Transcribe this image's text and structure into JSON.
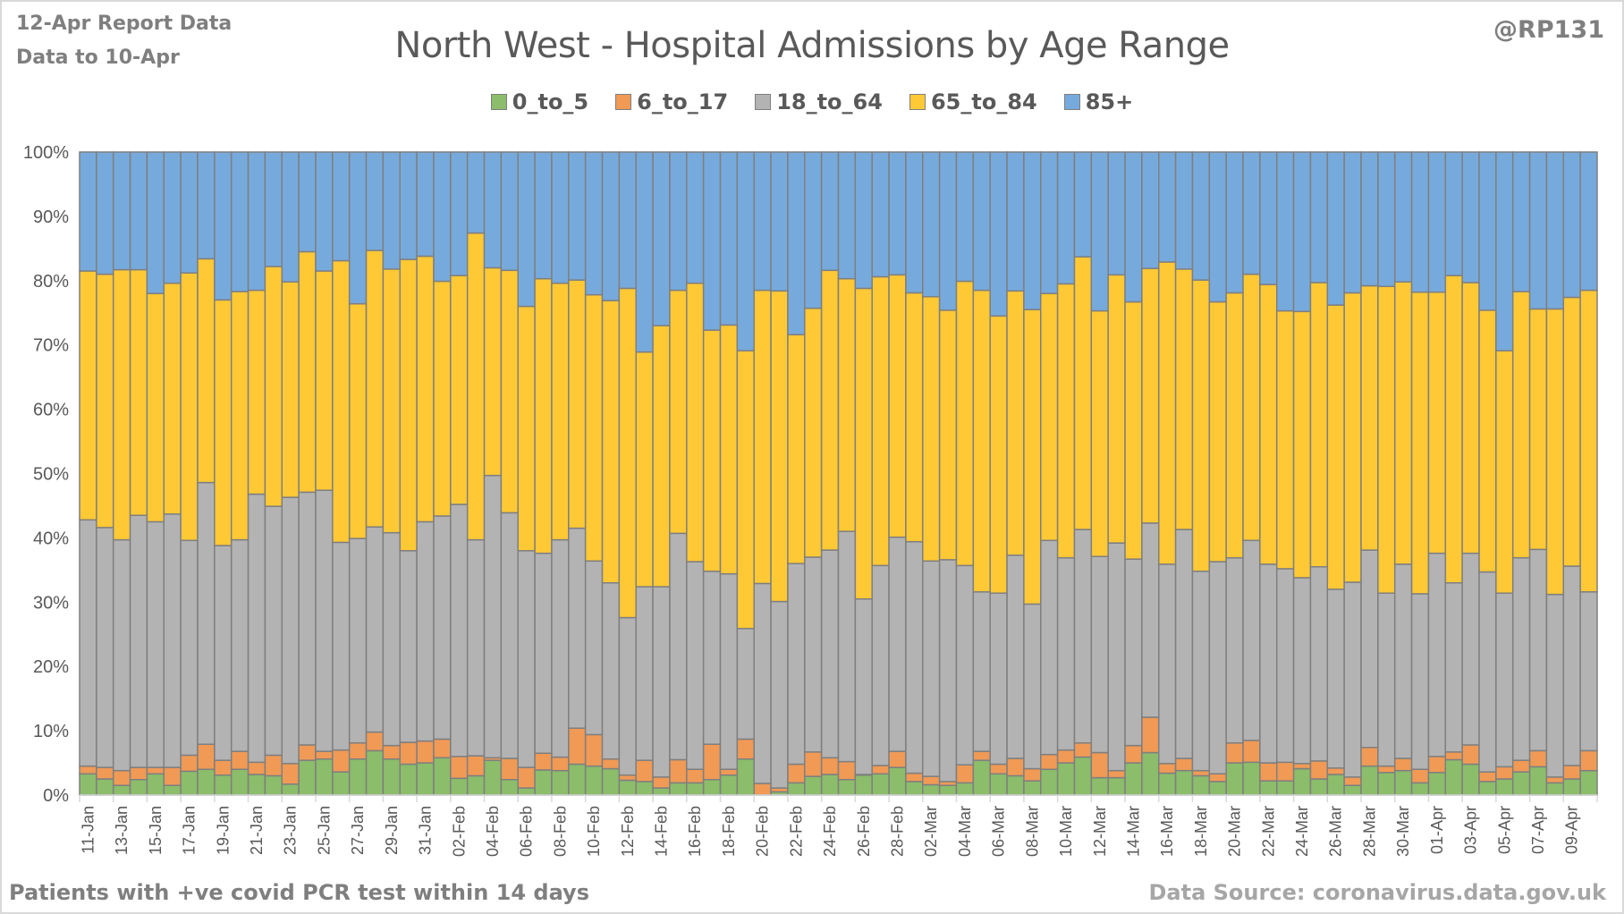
{
  "header": {
    "report_date": "12-Apr Report Data",
    "data_to": "Data to 10-Apr",
    "handle": "@RP131"
  },
  "footer": {
    "note": "Patients with  +ve covid PCR test within 14 days",
    "source": "Data Source: coronavirus.data.gov.uk"
  },
  "chart_data": {
    "type": "bar",
    "stacked": "100%",
    "title": "North West - Hospital Admissions by Age Range",
    "xlabel": "",
    "ylabel": "",
    "ylim": [
      0,
      100
    ],
    "yticks": [
      "0%",
      "10%",
      "20%",
      "30%",
      "40%",
      "50%",
      "60%",
      "70%",
      "80%",
      "90%",
      "100%"
    ],
    "grid": true,
    "legend_position": "top",
    "categories": [
      "11-Jan",
      "12-Jan",
      "13-Jan",
      "14-Jan",
      "15-Jan",
      "16-Jan",
      "17-Jan",
      "18-Jan",
      "19-Jan",
      "20-Jan",
      "21-Jan",
      "22-Jan",
      "23-Jan",
      "24-Jan",
      "25-Jan",
      "26-Jan",
      "27-Jan",
      "28-Jan",
      "29-Jan",
      "30-Jan",
      "31-Jan",
      "01-Feb",
      "02-Feb",
      "03-Feb",
      "04-Feb",
      "05-Feb",
      "06-Feb",
      "07-Feb",
      "08-Feb",
      "09-Feb",
      "10-Feb",
      "11-Feb",
      "12-Feb",
      "13-Feb",
      "14-Feb",
      "15-Feb",
      "16-Feb",
      "17-Feb",
      "18-Feb",
      "19-Feb",
      "20-Feb",
      "21-Feb",
      "22-Feb",
      "23-Feb",
      "24-Feb",
      "25-Feb",
      "26-Feb",
      "27-Feb",
      "28-Feb",
      "01-Mar",
      "02-Mar",
      "03-Mar",
      "04-Mar",
      "05-Mar",
      "06-Mar",
      "07-Mar",
      "08-Mar",
      "09-Mar",
      "10-Mar",
      "11-Mar",
      "12-Mar",
      "13-Mar",
      "14-Mar",
      "15-Mar",
      "16-Mar",
      "17-Mar",
      "18-Mar",
      "19-Mar",
      "20-Mar",
      "21-Mar",
      "22-Mar",
      "23-Mar",
      "24-Mar",
      "25-Mar",
      "26-Mar",
      "27-Mar",
      "28-Mar",
      "29-Mar",
      "30-Mar",
      "31-Mar",
      "01-Apr",
      "02-Apr",
      "03-Apr",
      "04-Apr",
      "05-Apr",
      "06-Apr",
      "07-Apr",
      "08-Apr",
      "09-Apr",
      "10-Apr"
    ],
    "cumulative_top_percent": {
      "0_to_5": [
        3.3,
        2.5,
        1.5,
        2.4,
        3.3,
        1.5,
        3.7,
        4.0,
        3.1,
        4.0,
        3.2,
        3.0,
        1.7,
        5.4,
        5.6,
        3.6,
        5.6,
        6.9,
        5.6,
        4.8,
        5.0,
        5.8,
        2.6,
        3.0,
        5.4,
        2.4,
        1.1,
        3.9,
        3.8,
        4.8,
        4.5,
        4.1,
        2.3,
        2.1,
        1.1,
        1.9,
        1.9,
        2.4,
        3.1,
        5.6,
        0.0,
        0.5,
        1.9,
        2.9,
        3.2,
        2.4,
        3.1,
        3.3,
        4.3,
        2.1,
        1.6,
        1.5,
        1.9,
        5.4,
        3.3,
        3.0,
        2.2,
        4.0,
        5.0,
        5.9,
        2.7,
        2.7,
        5.0,
        6.6,
        3.4,
        3.8,
        3.0,
        2.1,
        5.0,
        5.1,
        2.2,
        2.2,
        4.1,
        2.5,
        3.2,
        1.5,
        4.5,
        3.5,
        3.8,
        1.9,
        3.5,
        5.5,
        4.8,
        2.1,
        2.5,
        3.6,
        4.4,
        1.9,
        2.5,
        3.8
      ],
      "6_to_17": [
        4.5,
        4.3,
        3.8,
        4.3,
        4.3,
        4.3,
        6.2,
        7.9,
        5.4,
        6.8,
        5.1,
        6.2,
        4.9,
        7.8,
        6.8,
        7.0,
        8.1,
        9.8,
        7.7,
        8.2,
        8.4,
        8.7,
        6.0,
        6.1,
        5.8,
        5.7,
        4.3,
        6.5,
        5.9,
        10.4,
        9.4,
        5.6,
        3.1,
        5.4,
        2.8,
        5.5,
        4.0,
        7.9,
        4.0,
        8.7,
        1.8,
        1.1,
        4.8,
        6.7,
        5.8,
        5.2,
        3.2,
        4.6,
        6.8,
        3.4,
        2.9,
        2.1,
        4.7,
        6.8,
        4.8,
        5.7,
        4.1,
        6.3,
        7.0,
        8.1,
        6.6,
        3.8,
        7.7,
        12.1,
        4.9,
        5.7,
        3.8,
        3.3,
        8.1,
        8.5,
        5.0,
        5.1,
        4.9,
        5.3,
        4.2,
        2.8,
        7.4,
        4.5,
        5.7,
        4.0,
        6.0,
        6.7,
        7.8,
        3.6,
        4.4,
        5.4,
        6.9,
        2.8,
        4.6,
        6.9
      ],
      "18_to_64": [
        42.8,
        41.6,
        39.7,
        43.5,
        42.5,
        43.7,
        39.6,
        48.6,
        38.8,
        39.7,
        46.8,
        44.9,
        46.3,
        47.1,
        47.4,
        39.3,
        39.9,
        41.7,
        40.8,
        38.0,
        42.5,
        43.4,
        45.2,
        39.7,
        49.7,
        43.9,
        38.0,
        37.6,
        39.7,
        41.5,
        36.4,
        33.0,
        27.6,
        32.4,
        32.4,
        40.7,
        36.3,
        34.8,
        34.4,
        25.9,
        32.9,
        30.1,
        36.0,
        37.0,
        38.1,
        41.0,
        30.5,
        35.7,
        40.1,
        39.4,
        36.4,
        36.6,
        35.7,
        31.6,
        31.4,
        37.3,
        29.7,
        39.6,
        36.9,
        41.3,
        37.1,
        39.2,
        36.7,
        42.3,
        35.9,
        41.3,
        34.8,
        36.3,
        36.9,
        39.6,
        35.9,
        35.2,
        33.8,
        35.5,
        32.0,
        33.1,
        38.1,
        31.4,
        35.9,
        31.3,
        37.6,
        33.0,
        37.6,
        34.7,
        31.4,
        36.9,
        38.2,
        31.2,
        35.6,
        31.6
      ],
      "65_to_84": [
        81.5,
        81.0,
        81.7,
        81.7,
        78.0,
        79.6,
        81.2,
        83.4,
        77.0,
        78.3,
        78.5,
        82.2,
        79.8,
        84.5,
        81.5,
        83.1,
        76.4,
        84.7,
        81.8,
        83.3,
        83.8,
        79.9,
        80.8,
        87.4,
        82.0,
        81.6,
        76.0,
        80.3,
        79.6,
        80.1,
        77.8,
        76.9,
        78.8,
        68.9,
        73.0,
        78.5,
        79.6,
        72.3,
        73.1,
        69.1,
        78.5,
        78.4,
        71.6,
        75.7,
        81.6,
        80.3,
        78.8,
        80.6,
        80.9,
        78.1,
        77.5,
        75.4,
        79.9,
        78.5,
        74.5,
        78.4,
        75.5,
        78.0,
        79.5,
        83.7,
        75.3,
        80.9,
        76.7,
        81.9,
        82.9,
        81.8,
        80.1,
        76.7,
        78.1,
        81.0,
        79.4,
        75.3,
        75.2,
        79.7,
        76.2,
        78.1,
        79.2,
        79.1,
        79.8,
        78.2,
        78.2,
        80.8,
        79.7,
        75.4,
        69.1,
        78.3,
        75.6,
        75.6,
        77.4,
        78.5
      ],
      "85+": "remainder to 100%"
    },
    "series": [
      {
        "name": "0_to_5",
        "color": "#8bbd6a"
      },
      {
        "name": "6_to_17",
        "color": "#f09a56"
      },
      {
        "name": "18_to_64",
        "color": "#b3b3b3"
      },
      {
        "name": "65_to_84",
        "color": "#ffc935"
      },
      {
        "name": "85+",
        "color": "#77aadc"
      }
    ]
  }
}
